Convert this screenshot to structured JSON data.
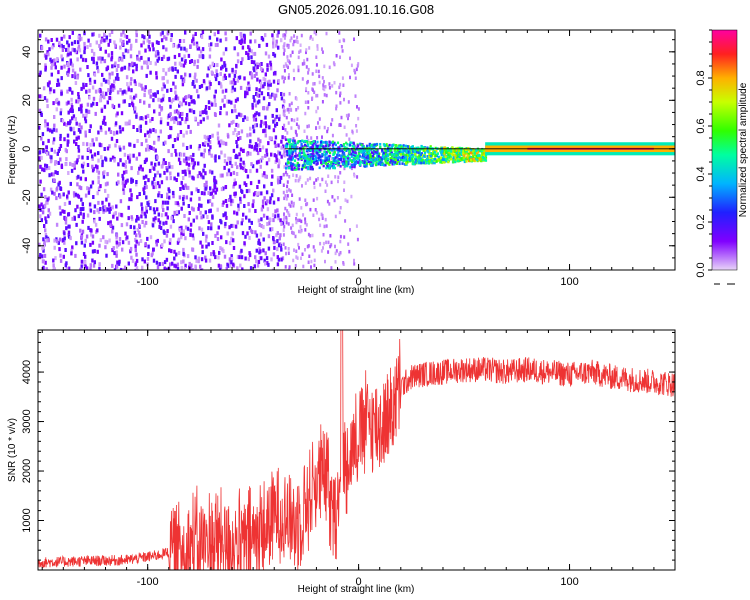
{
  "title": "GN05.2026.091.10.16.G08",
  "chart_data": [
    {
      "type": "heatmap",
      "xlabel": "Height of straight line (km)",
      "ylabel": "Frequency (Hz)",
      "xlim": [
        -152,
        150
      ],
      "ylim": [
        -50,
        49
      ],
      "x_ticks": [
        -100,
        0,
        100
      ],
      "x_tick_labels": [
        "-100",
        "0",
        "100"
      ],
      "y_ticks": [
        -40,
        -20,
        0,
        20,
        40
      ],
      "y_tick_labels": [
        "-40",
        "-20",
        "0",
        "20",
        "40"
      ],
      "colorbar": {
        "label": "Normalized spectral amplitude",
        "range": [
          0.0,
          1.0
        ],
        "ticks": [
          0.0,
          0.2,
          0.4,
          0.6,
          0.8
        ],
        "tick_labels": [
          "0.0",
          "0.2",
          "0.4",
          "0.6",
          "0.8"
        ]
      },
      "features": [
        {
          "x_range": [
            -152,
            -36
          ],
          "y_range": [
            -50,
            49
          ],
          "amplitude": 0.15
        },
        {
          "x_range": [
            -36,
            0
          ],
          "y_range": [
            -50,
            49
          ],
          "amplitude": 0.04
        },
        {
          "x_range": [
            -35,
            60
          ],
          "y_center": 0,
          "y_halfwidth": 4,
          "amplitude": 0.45
        },
        {
          "x_range": [
            60,
            150
          ],
          "y_center": 0,
          "y_halfwidth": 1.5,
          "amplitude": 0.95
        }
      ]
    },
    {
      "type": "line",
      "xlabel": "Height of straight line (km)",
      "ylabel": "SNR (10 * v/v)",
      "xlim": [
        -152,
        150
      ],
      "ylim": [
        0,
        4850
      ],
      "x_ticks": [
        -100,
        0,
        100
      ],
      "x_tick_labels": [
        "-100",
        "0",
        "100"
      ],
      "y_ticks": [
        1000,
        2000,
        3000,
        4000
      ],
      "y_tick_labels": [
        "1000",
        "2000",
        "3000",
        "4000"
      ],
      "color": "#ee3333",
      "x": [
        -152,
        -130,
        -110,
        -95,
        -80,
        -65,
        -55,
        -45,
        -38,
        -30,
        -20,
        -12,
        -8,
        -5,
        0,
        5,
        10,
        15,
        20,
        25,
        30,
        40,
        50,
        60,
        70,
        80,
        90,
        100,
        110,
        120,
        130,
        140,
        150
      ],
      "values": [
        150,
        180,
        200,
        300,
        500,
        600,
        500,
        800,
        1200,
        900,
        1800,
        1900,
        2100,
        2300,
        2800,
        3000,
        2900,
        3200,
        3700,
        3900,
        3950,
        4000,
        4050,
        4050,
        4000,
        4050,
        4000,
        3950,
        4000,
        3900,
        3850,
        3800,
        3750
      ]
    }
  ],
  "colors": {
    "line": "#ee3333",
    "scatter_base": "#6a00e8"
  }
}
